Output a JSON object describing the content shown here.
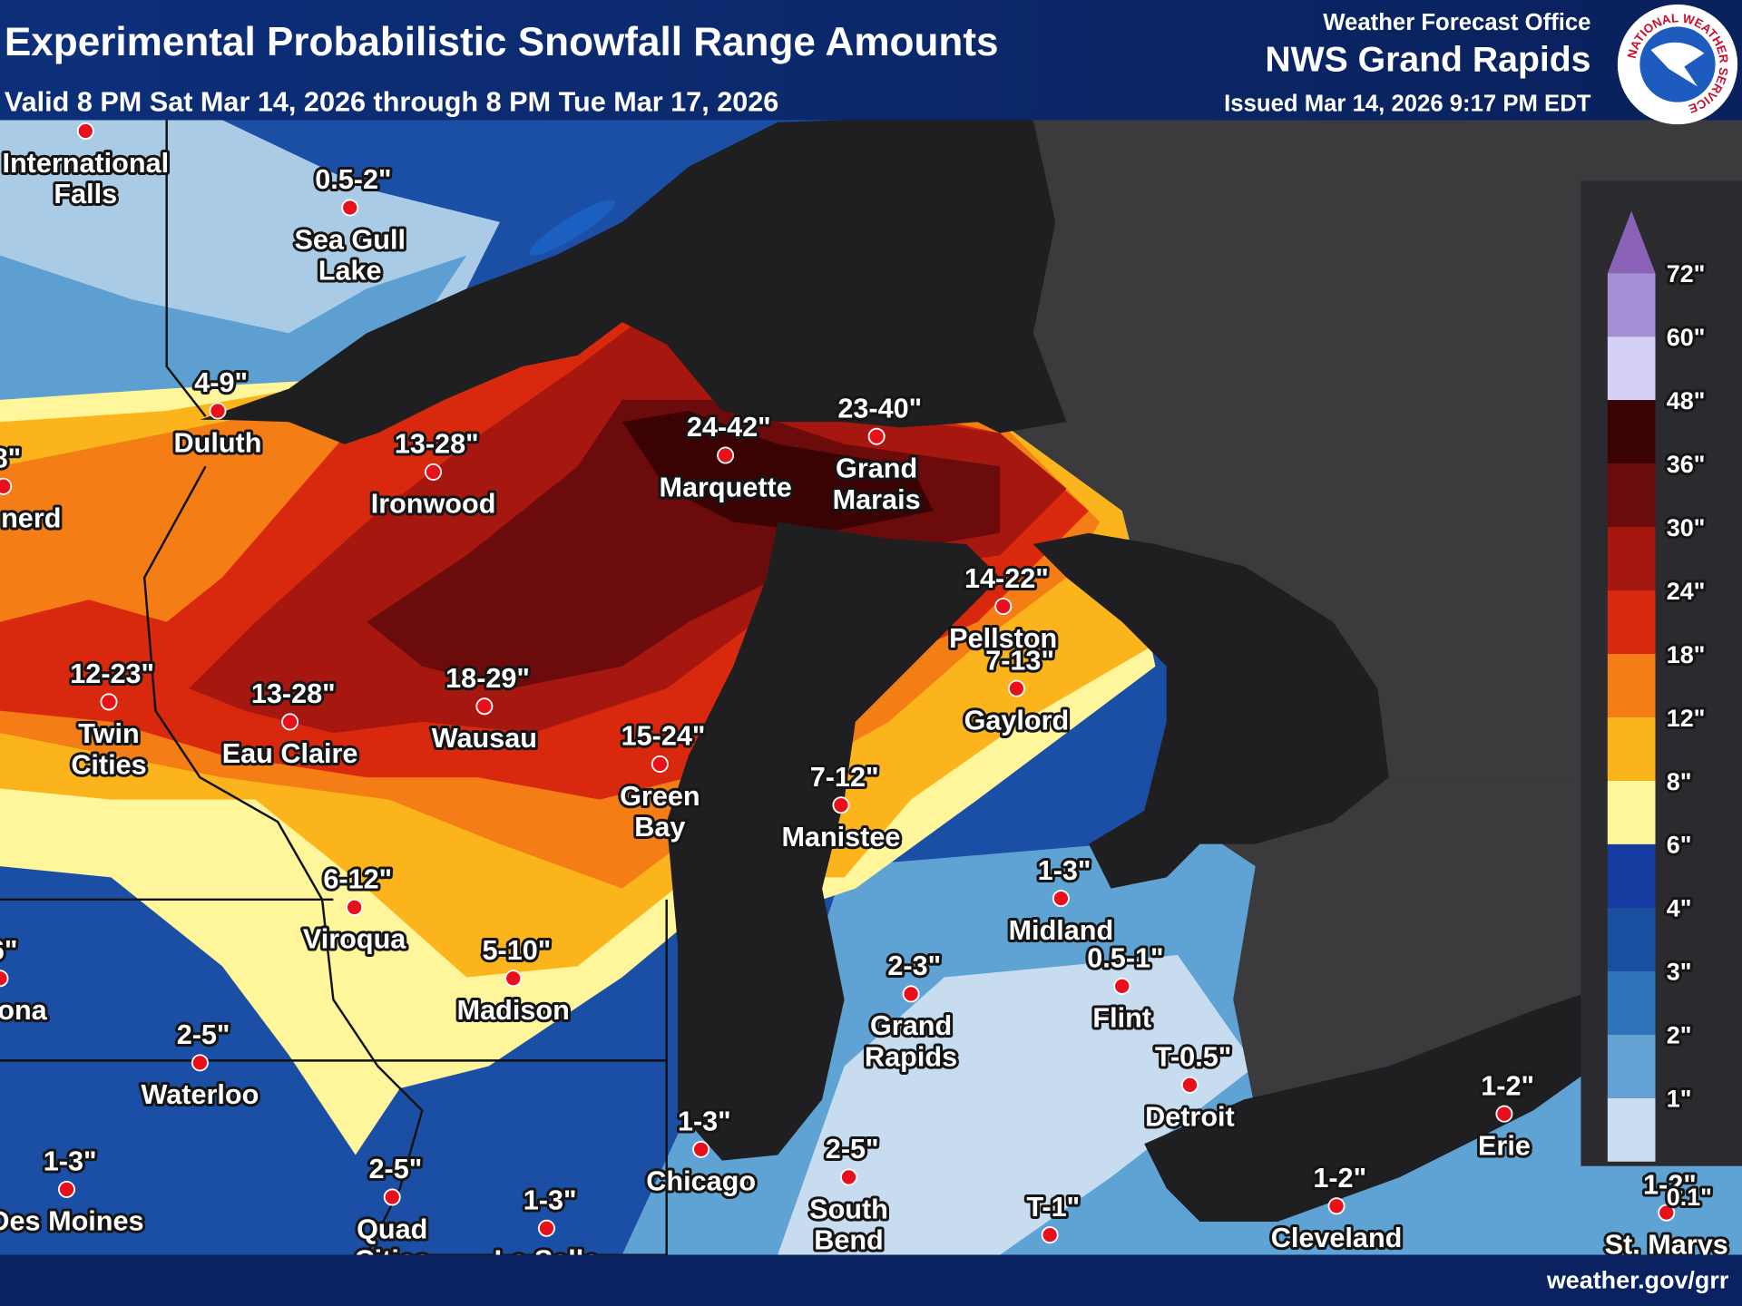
{
  "header": {
    "title": "Experimental Probabilistic Snowfall Range Amounts",
    "valid": "Valid 8 PM Sat Mar 14, 2026 through 8 PM Tue Mar 17, 2026",
    "office": "Weather Forecast Office",
    "office_name": "NWS Grand Rapids",
    "issued": "Issued Mar 14, 2026 9:17 PM EDT",
    "logo_text": "NATIONAL WEATHER SERVICE"
  },
  "cities": [
    {
      "name": [
        "International",
        "Falls"
      ]
    },
    {
      "name": [
        "Sea Gull",
        "Lake"
      ],
      "amount": "0.5-2\""
    },
    {
      "name": [
        "Duluth"
      ],
      "amount": "4-9\""
    },
    {
      "name": [
        "nerd"
      ],
      "amount": "8\""
    },
    {
      "name": [
        "Ironwood"
      ],
      "amount": "13-28\""
    },
    {
      "name": [
        "Marquette"
      ],
      "amount": "24-42\""
    },
    {
      "name": [
        "Grand",
        "Marais"
      ],
      "amount": "23-40\""
    },
    {
      "name": [
        "Pellston"
      ],
      "amount": "14-22\""
    },
    {
      "name": [
        "Gaylord"
      ],
      "amount": "7-13\""
    },
    {
      "name": [
        "Twin",
        "Cities"
      ],
      "amount": "12-23\""
    },
    {
      "name": [
        "Eau Claire"
      ],
      "amount": "13-28\""
    },
    {
      "name": [
        "Wausau"
      ],
      "amount": "18-29\""
    },
    {
      "name": [
        "Green",
        "Bay"
      ],
      "amount": "15-24\""
    },
    {
      "name": [
        "Manistee"
      ],
      "amount": "7-12\""
    },
    {
      "name": [
        "Viroqua"
      ],
      "amount": "6-12\""
    },
    {
      "name": [
        "Madison"
      ],
      "amount": "5-10\""
    },
    {
      "name": [
        "Midland"
      ],
      "amount": "1-3\""
    },
    {
      "name": [
        "Flint"
      ],
      "amount": "0.5-1\""
    },
    {
      "name": [
        "Grand",
        "Rapids"
      ],
      "amount": "2-3\""
    },
    {
      "name": [
        "ona"
      ],
      "amount": "6\""
    },
    {
      "name": [
        "Waterloo"
      ],
      "amount": "2-5\""
    },
    {
      "name": [
        "Des Moines"
      ],
      "amount": "1-3\""
    },
    {
      "name": [
        "Quad",
        "Cities"
      ],
      "amount": "2-5\""
    },
    {
      "name": [
        "La Salle"
      ],
      "amount": "1-3\""
    },
    {
      "name": [
        "Chicago"
      ],
      "amount": "1-3\""
    },
    {
      "name": [
        "South",
        "Bend"
      ],
      "amount": "2-5\""
    },
    {
      "name": [
        "Detroit"
      ],
      "amount": "T-0.5\""
    },
    {
      "name": [
        "Erie"
      ],
      "amount": "1-2\""
    },
    {
      "name": [
        "Cleveland"
      ],
      "amount": "1-2\""
    },
    {
      "name": [],
      "amount": "T-1\""
    },
    {
      "name": [
        "St. Marys"
      ],
      "amount": "1-2\""
    }
  ],
  "legend": {
    "cap_color": "#8a63b8",
    "items": [
      {
        "label": "72\"",
        "color": "#a58fd4"
      },
      {
        "label": "60\"",
        "color": "#d5d0f5"
      },
      {
        "label": "48\"",
        "color": "#3a0202"
      },
      {
        "label": "36\"",
        "color": "#6c0b0b"
      },
      {
        "label": "30\"",
        "color": "#a6170f"
      },
      {
        "label": "24\"",
        "color": "#d8290f"
      },
      {
        "label": "18\"",
        "color": "#f47d16"
      },
      {
        "label": "12\"",
        "color": "#fbb41b"
      },
      {
        "label": "8\"",
        "color": "#fff59a"
      },
      {
        "label": "6\"",
        "color": "#163ba0"
      },
      {
        "label": "4\"",
        "color": "#1a4f9f"
      },
      {
        "label": "3\"",
        "color": "#2f74ba"
      },
      {
        "label": "2\"",
        "color": "#63a2d4"
      },
      {
        "label": "1\"",
        "color": "#c9def0"
      },
      {
        "label": "0.1\""
      }
    ]
  },
  "footer": "weather.gov/grr"
}
